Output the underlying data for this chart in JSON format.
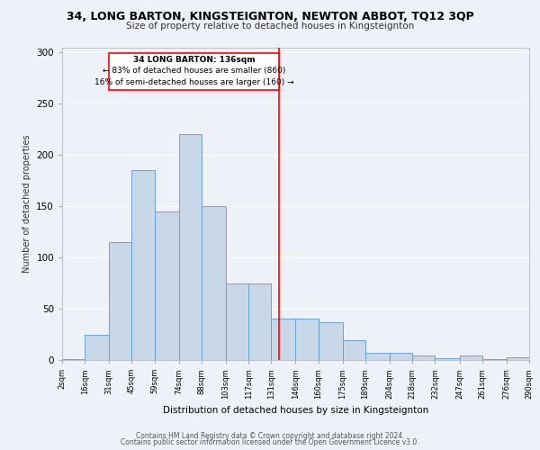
{
  "title1": "34, LONG BARTON, KINGSTEIGNTON, NEWTON ABBOT, TQ12 3QP",
  "title2": "Size of property relative to detached houses in Kingsteignton",
  "xlabel": "Distribution of detached houses by size in Kingsteignton",
  "ylabel": "Number of detached properties",
  "bin_labels": [
    "2sqm",
    "16sqm",
    "31sqm",
    "45sqm",
    "59sqm",
    "74sqm",
    "88sqm",
    "103sqm",
    "117sqm",
    "131sqm",
    "146sqm",
    "160sqm",
    "175sqm",
    "189sqm",
    "204sqm",
    "218sqm",
    "232sqm",
    "247sqm",
    "261sqm",
    "276sqm",
    "290sqm"
  ],
  "bin_edges": [
    2,
    16,
    31,
    45,
    59,
    74,
    88,
    103,
    117,
    131,
    146,
    160,
    175,
    189,
    204,
    218,
    232,
    247,
    261,
    276,
    290
  ],
  "bar_heights": [
    1,
    25,
    115,
    185,
    145,
    220,
    150,
    75,
    75,
    40,
    40,
    37,
    19,
    7,
    7,
    4,
    2,
    4,
    1,
    3
  ],
  "bar_color": "#c8d8e8",
  "bar_edge_color": "#5b9bd5",
  "vline_x": 136,
  "vline_color": "red",
  "annotation_title": "34 LONG BARTON: 136sqm",
  "annotation_line1": "← 83% of detached houses are smaller (860)",
  "annotation_line2": "16% of semi-detached houses are larger (160) →",
  "annotation_box_color": "red",
  "ylim": [
    0,
    305
  ],
  "yticks": [
    0,
    50,
    100,
    150,
    200,
    250,
    300
  ],
  "footer1": "Contains HM Land Registry data © Crown copyright and database right 2024.",
  "footer2": "Contains public sector information licensed under the Open Government Licence v3.0.",
  "bg_color": "#eef2f8",
  "plot_bg_color": "#eef2f8"
}
